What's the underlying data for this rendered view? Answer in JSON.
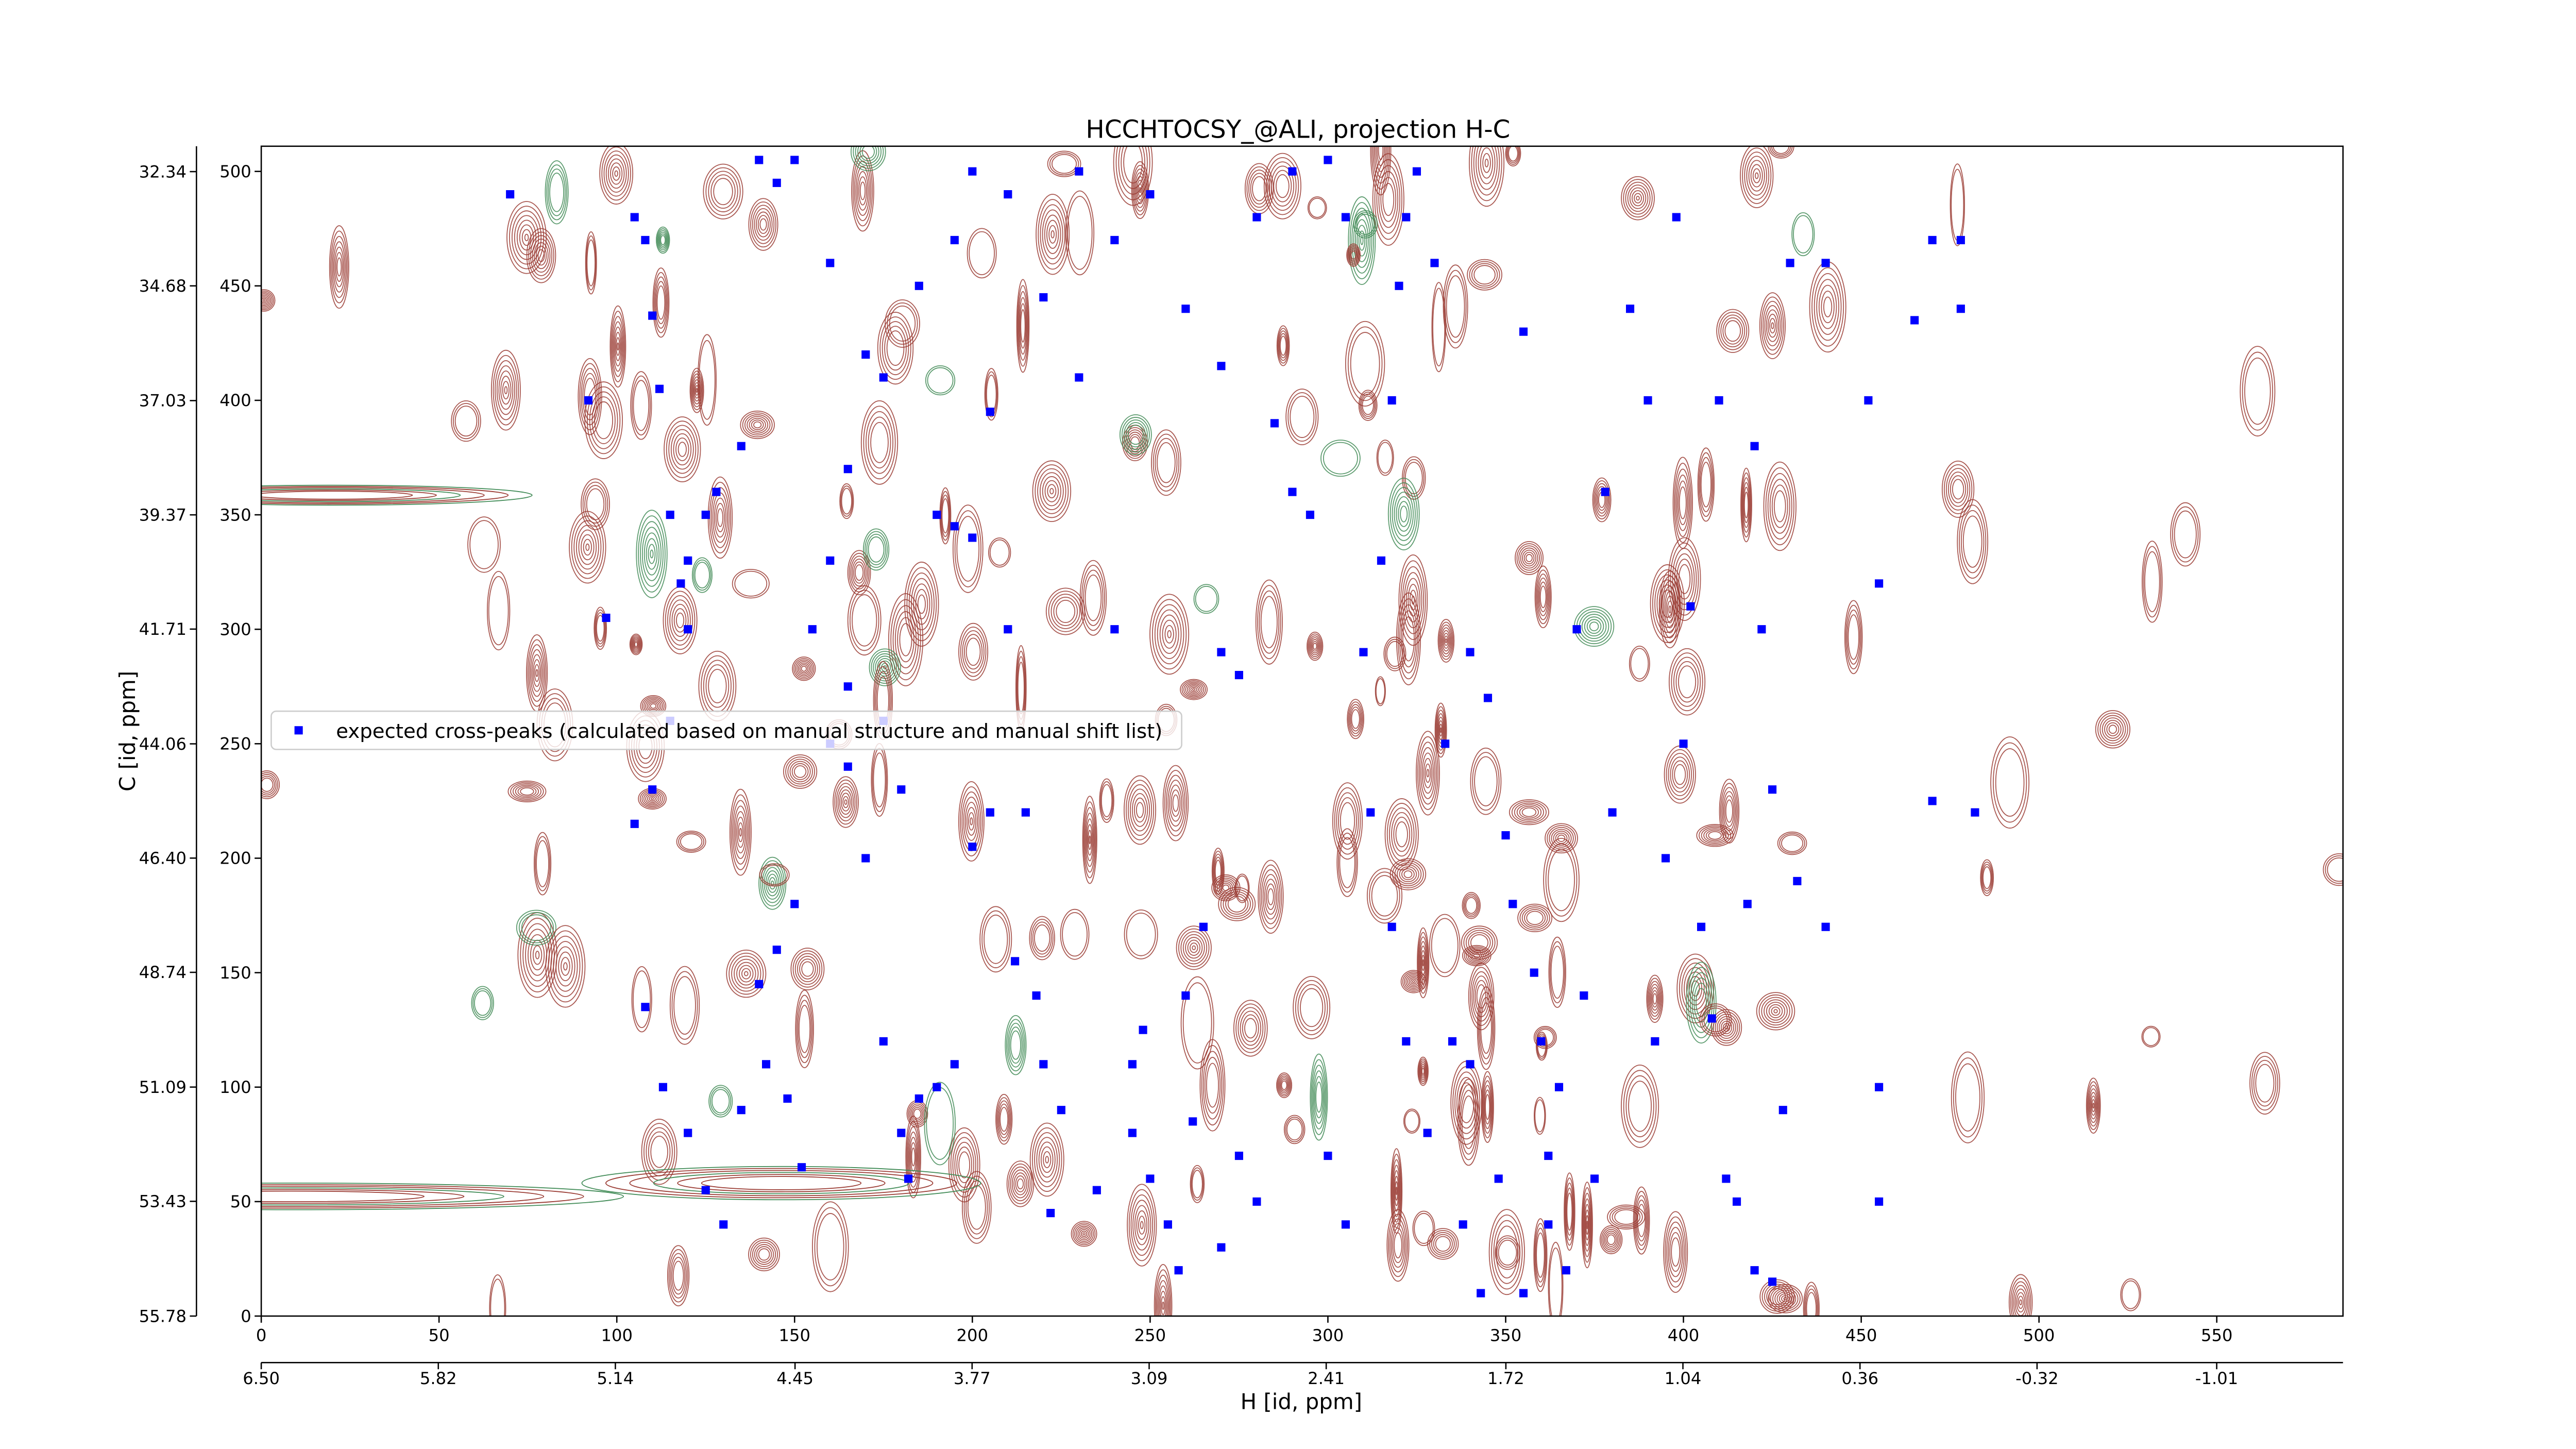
{
  "chart_data": {
    "type": "scatter",
    "title": "HCCHTOCSY_@ALI, projection H-C",
    "x_label": "H [id, ppm]",
    "y_label": "C [id, ppm]",
    "xlim": [
      0,
      585.5
    ],
    "ylim": [
      0,
      511
    ],
    "xticks": [
      0,
      50,
      100,
      150,
      200,
      250,
      300,
      350,
      400,
      450,
      500,
      550
    ],
    "yticks": [
      0,
      50,
      100,
      150,
      200,
      250,
      300,
      350,
      400,
      450,
      500
    ],
    "x2lim": [
      6.5,
      -1.495
    ],
    "x2ticks": [
      {
        "value": 6.5,
        "label": "6.50"
      },
      5.82,
      5.14,
      4.45,
      3.77,
      3.09,
      2.41,
      1.72,
      1.04,
      0.36,
      -0.32,
      -1.01
    ],
    "y2lim": [
      55.78,
      31.82
    ],
    "y2ticks": [
      55.78,
      53.43,
      51.09,
      48.74,
      {
        "value": 46.4,
        "label": "46.40"
      },
      44.06,
      41.71,
      39.37,
      37.03,
      34.68,
      32.34
    ],
    "legend_loc": "center left",
    "series": [
      {
        "name": "expected cross-peaks (calculated based on manual structure and manual shift list)",
        "color": "#0000ff",
        "x": [
          70,
          92,
          97,
          105,
          108,
          110,
          112,
          115,
          118,
          120,
          115,
          110,
          105,
          108,
          113,
          120,
          125,
          130,
          135,
          140,
          142,
          145,
          150,
          148,
          152,
          155,
          160,
          165,
          165,
          170,
          175,
          180,
          182,
          185,
          190,
          195,
          190,
          195,
          200,
          205,
          210,
          215,
          220,
          225,
          230,
          240,
          245,
          250,
          255,
          258,
          260,
          265,
          270,
          275,
          280,
          285,
          290,
          295,
          300,
          305,
          310,
          315,
          318,
          320,
          322,
          325,
          330,
          333,
          335,
          340,
          340,
          345,
          348,
          350,
          352,
          355,
          358,
          360,
          362,
          365,
          367,
          370,
          372,
          375,
          378,
          380,
          385,
          390,
          392,
          395,
          398,
          400,
          402,
          405,
          408,
          410,
          412,
          415,
          418,
          420,
          422,
          425,
          428,
          430,
          432,
          440,
          465,
          470,
          478,
          478,
          455,
          452,
          455,
          455,
          482,
          470,
          440,
          420,
          425,
          140,
          145,
          150,
          160,
          170,
          175,
          185,
          195,
          200,
          210,
          220,
          230,
          240,
          250,
          260,
          270,
          280,
          290,
          300,
          305,
          312,
          318,
          322,
          328,
          338,
          343,
          355,
          362,
          120,
          125,
          128,
          135,
          160,
          165,
          175,
          180,
          200,
          205,
          212,
          218,
          222,
          235,
          245,
          248,
          262,
          270,
          275
        ],
        "values": [
          490,
          400,
          305,
          480,
          470,
          437,
          405,
          350,
          320,
          300,
          260,
          230,
          215,
          135,
          100,
          80,
          55,
          40,
          90,
          145,
          110,
          160,
          180,
          95,
          65,
          300,
          330,
          370,
          240,
          200,
          120,
          80,
          60,
          95,
          100,
          110,
          350,
          345,
          340,
          395,
          300,
          220,
          110,
          90,
          410,
          300,
          80,
          60,
          40,
          20,
          140,
          170,
          290,
          280,
          50,
          390,
          360,
          350,
          70,
          40,
          290,
          330,
          400,
          450,
          480,
          500,
          460,
          250,
          120,
          110,
          290,
          270,
          60,
          210,
          180,
          430,
          150,
          120,
          70,
          100,
          20,
          300,
          140,
          60,
          360,
          220,
          440,
          400,
          120,
          200,
          480,
          250,
          310,
          170,
          130,
          400,
          60,
          50,
          180,
          380,
          300,
          230,
          90,
          460,
          190,
          460,
          435,
          470,
          470,
          440,
          100,
          400,
          320,
          50,
          220,
          225,
          170,
          20,
          15,
          505,
          495,
          505,
          460,
          420,
          410,
          450,
          470,
          500,
          490,
          445,
          500,
          470,
          490,
          440,
          415,
          480,
          500,
          505,
          480,
          220,
          170,
          120,
          80,
          40,
          10,
          10,
          40,
          330,
          350,
          360,
          380,
          250,
          275,
          260,
          230,
          205,
          220,
          155,
          140,
          45,
          55,
          110,
          125,
          85,
          30,
          70
        ]
      }
    ]
  }
}
